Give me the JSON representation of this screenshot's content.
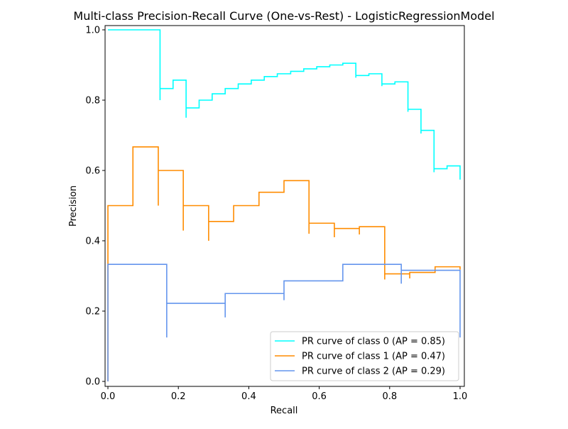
{
  "chart_data": {
    "type": "line",
    "title": "Multi-class Precision-Recall Curve (One-vs-Rest) - LogisticRegressionModel",
    "xlabel": "Recall",
    "ylabel": "Precision",
    "xlim": [
      0.0,
      1.0
    ],
    "ylim": [
      0.0,
      1.0
    ],
    "xticks": [
      0.0,
      0.2,
      0.4,
      0.6,
      0.8,
      1.0
    ],
    "yticks": [
      0.0,
      0.2,
      0.4,
      0.6,
      0.8,
      1.0
    ],
    "xtick_labels": [
      "0.0",
      "0.2",
      "0.4",
      "0.6",
      "0.8",
      "1.0"
    ],
    "ytick_labels": [
      "0.0",
      "0.2",
      "0.4",
      "0.6",
      "0.8",
      "1.0"
    ],
    "grid": false,
    "legend_position": "lower-right",
    "series": [
      {
        "name": "PR curve of class 0 (AP = 0.85)",
        "color": "#00ffff",
        "step": "post",
        "points": [
          [
            0.0,
            1.0
          ],
          [
            0.148,
            1.0
          ],
          [
            0.148,
            0.8
          ],
          [
            0.148,
            0.833
          ],
          [
            0.185,
            0.833
          ],
          [
            0.185,
            0.857
          ],
          [
            0.222,
            0.857
          ],
          [
            0.222,
            0.75
          ],
          [
            0.222,
            0.778
          ],
          [
            0.259,
            0.778
          ],
          [
            0.259,
            0.8
          ],
          [
            0.296,
            0.8
          ],
          [
            0.296,
            0.818
          ],
          [
            0.333,
            0.818
          ],
          [
            0.333,
            0.833
          ],
          [
            0.37,
            0.833
          ],
          [
            0.37,
            0.846
          ],
          [
            0.407,
            0.846
          ],
          [
            0.407,
            0.857
          ],
          [
            0.444,
            0.857
          ],
          [
            0.444,
            0.867
          ],
          [
            0.481,
            0.867
          ],
          [
            0.481,
            0.875
          ],
          [
            0.519,
            0.875
          ],
          [
            0.519,
            0.882
          ],
          [
            0.556,
            0.882
          ],
          [
            0.556,
            0.889
          ],
          [
            0.593,
            0.889
          ],
          [
            0.593,
            0.895
          ],
          [
            0.63,
            0.895
          ],
          [
            0.63,
            0.9
          ],
          [
            0.667,
            0.9
          ],
          [
            0.667,
            0.905
          ],
          [
            0.704,
            0.905
          ],
          [
            0.704,
            0.864
          ],
          [
            0.704,
            0.87
          ],
          [
            0.741,
            0.87
          ],
          [
            0.741,
            0.875
          ],
          [
            0.778,
            0.875
          ],
          [
            0.778,
            0.84
          ],
          [
            0.778,
            0.846
          ],
          [
            0.815,
            0.846
          ],
          [
            0.815,
            0.852
          ],
          [
            0.852,
            0.852
          ],
          [
            0.852,
            0.767
          ],
          [
            0.852,
            0.774
          ],
          [
            0.889,
            0.774
          ],
          [
            0.889,
            0.705
          ],
          [
            0.889,
            0.714
          ],
          [
            0.926,
            0.714
          ],
          [
            0.926,
            0.595
          ],
          [
            0.926,
            0.605
          ],
          [
            0.963,
            0.605
          ],
          [
            0.963,
            0.613
          ],
          [
            1.0,
            0.613
          ],
          [
            1.0,
            0.574
          ]
        ]
      },
      {
        "name": "PR curve of class 1 (AP = 0.47)",
        "color": "#ff8c00",
        "step": "post",
        "points": [
          [
            0.0,
            0.0
          ],
          [
            0.0,
            0.5
          ],
          [
            0.071,
            0.5
          ],
          [
            0.071,
            0.667
          ],
          [
            0.143,
            0.667
          ],
          [
            0.143,
            0.5
          ],
          [
            0.143,
            0.6
          ],
          [
            0.214,
            0.6
          ],
          [
            0.214,
            0.429
          ],
          [
            0.214,
            0.5
          ],
          [
            0.286,
            0.5
          ],
          [
            0.286,
            0.4
          ],
          [
            0.286,
            0.455
          ],
          [
            0.357,
            0.455
          ],
          [
            0.357,
            0.5
          ],
          [
            0.429,
            0.5
          ],
          [
            0.429,
            0.538
          ],
          [
            0.5,
            0.538
          ],
          [
            0.5,
            0.571
          ],
          [
            0.571,
            0.571
          ],
          [
            0.571,
            0.42
          ],
          [
            0.571,
            0.45
          ],
          [
            0.643,
            0.45
          ],
          [
            0.643,
            0.41
          ],
          [
            0.643,
            0.435
          ],
          [
            0.714,
            0.435
          ],
          [
            0.714,
            0.418
          ],
          [
            0.714,
            0.44
          ],
          [
            0.786,
            0.44
          ],
          [
            0.786,
            0.29
          ],
          [
            0.786,
            0.306
          ],
          [
            0.857,
            0.306
          ],
          [
            0.857,
            0.293
          ],
          [
            0.857,
            0.31
          ],
          [
            0.929,
            0.31
          ],
          [
            0.929,
            0.326
          ],
          [
            1.0,
            0.326
          ],
          [
            1.0,
            0.318
          ]
        ]
      },
      {
        "name": "PR curve of class 2 (AP = 0.29)",
        "color": "#6495ed",
        "step": "post",
        "points": [
          [
            0.0,
            0.0
          ],
          [
            0.0,
            0.333
          ],
          [
            0.167,
            0.333
          ],
          [
            0.167,
            0.125
          ],
          [
            0.167,
            0.222
          ],
          [
            0.333,
            0.222
          ],
          [
            0.333,
            0.182
          ],
          [
            0.333,
            0.25
          ],
          [
            0.5,
            0.25
          ],
          [
            0.5,
            0.231
          ],
          [
            0.5,
            0.286
          ],
          [
            0.667,
            0.286
          ],
          [
            0.667,
            0.333
          ],
          [
            0.833,
            0.333
          ],
          [
            0.833,
            0.278
          ],
          [
            0.833,
            0.316
          ],
          [
            1.0,
            0.316
          ],
          [
            1.0,
            0.125
          ]
        ]
      }
    ]
  }
}
